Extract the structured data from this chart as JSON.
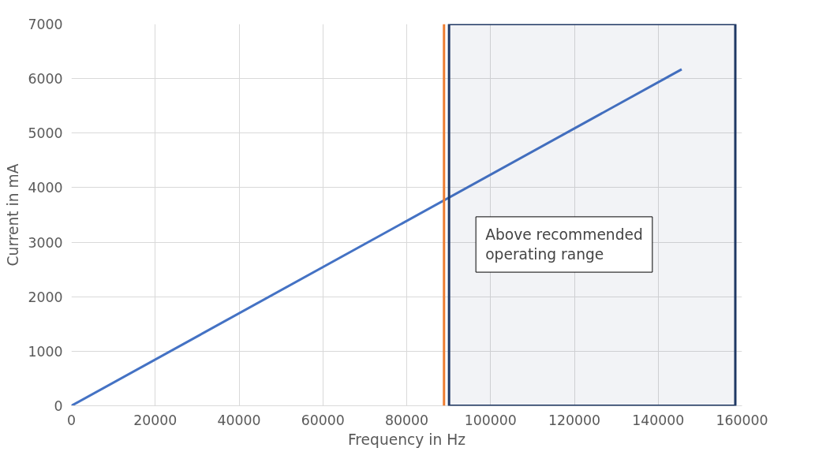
{
  "chart_data": {
    "type": "line",
    "xlabel": "Frequency in Hz",
    "ylabel": "Current in mA",
    "series": [
      {
        "color": "#4472c4",
        "x": [
          0,
          145600
        ],
        "values": [
          0,
          6170
        ]
      }
    ],
    "xlim": [
      0,
      160000
    ],
    "xticks": [
      0,
      20000,
      40000,
      60000,
      80000,
      100000,
      120000,
      140000,
      160000
    ],
    "ylim": [
      0,
      7000
    ],
    "yticks": [
      0,
      1000,
      2000,
      3000,
      4000,
      5000,
      6000,
      7000
    ],
    "grid": true,
    "marker": "none",
    "line_style": "solid",
    "ref_lines": [
      {
        "axis": "x",
        "value": 88900,
        "color": "#ed7d31"
      }
    ],
    "bands": [
      {
        "axis": "x",
        "from": 90100,
        "to": 158400,
        "color": "#1f3864"
      }
    ],
    "annotations": [
      "Above recommended operating range"
    ]
  }
}
